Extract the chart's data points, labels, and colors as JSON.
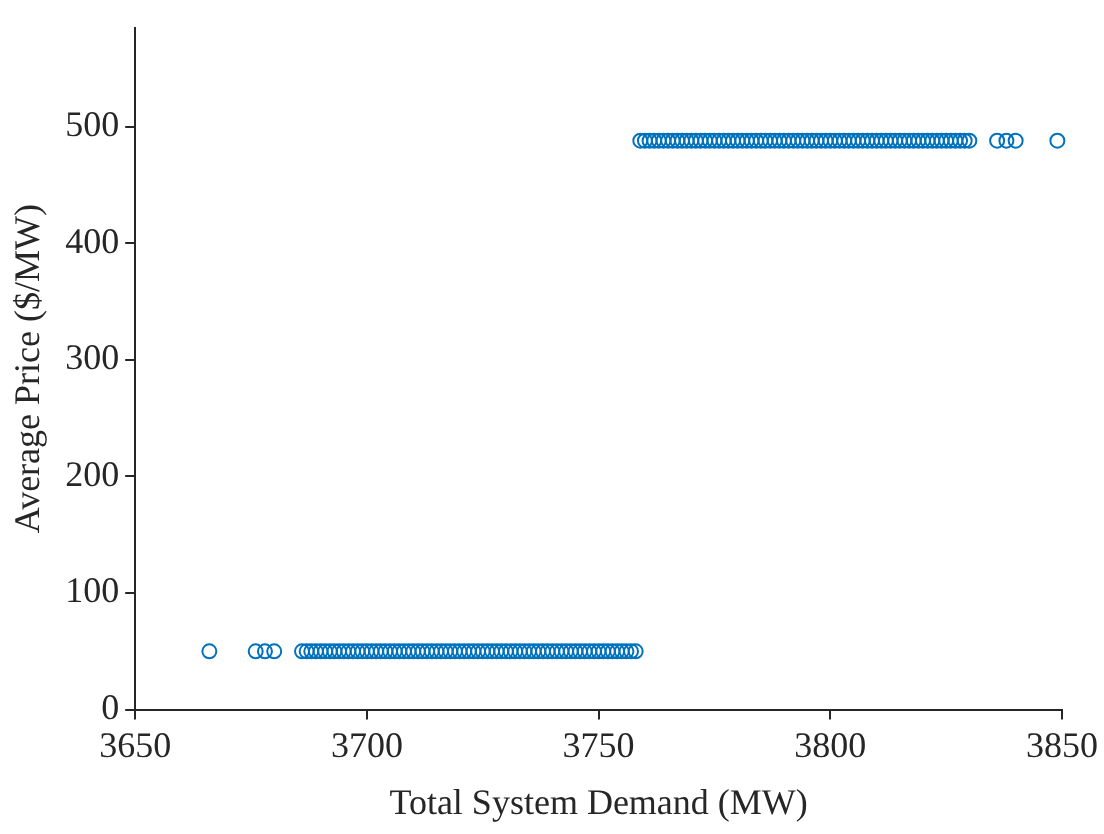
{
  "chart_data": {
    "type": "scatter",
    "xlabel": "Total System Demand (MW)",
    "ylabel": "Average Price ($/MW)",
    "xlim": [
      3650,
      3850
    ],
    "ylim": [
      0,
      585
    ],
    "xticks": [
      3650,
      3700,
      3750,
      3800,
      3850
    ],
    "yticks": [
      0,
      100,
      200,
      300,
      400,
      500
    ],
    "grid": false,
    "legend": false,
    "marker": "circle",
    "series": [
      {
        "color": "#0072bd",
        "x": [
          3666,
          3676,
          3678,
          3680,
          3686,
          3687,
          3688,
          3689,
          3690,
          3691,
          3692,
          3693,
          3694,
          3695,
          3696,
          3697,
          3698,
          3699,
          3700,
          3701,
          3702,
          3703,
          3704,
          3705,
          3706,
          3707,
          3708,
          3709,
          3710,
          3711,
          3712,
          3713,
          3714,
          3715,
          3716,
          3717,
          3718,
          3719,
          3720,
          3721,
          3722,
          3723,
          3724,
          3725,
          3726,
          3727,
          3728,
          3729,
          3730,
          3731,
          3732,
          3733,
          3734,
          3735,
          3736,
          3737,
          3738,
          3739,
          3740,
          3741,
          3742,
          3743,
          3744,
          3745,
          3746,
          3747,
          3748,
          3749,
          3750,
          3751,
          3752,
          3753,
          3754,
          3755,
          3756,
          3757,
          3758
        ],
        "values": [
          50,
          50,
          50,
          50,
          50,
          50,
          50,
          50,
          50,
          50,
          50,
          50,
          50,
          50,
          50,
          50,
          50,
          50,
          50,
          50,
          50,
          50,
          50,
          50,
          50,
          50,
          50,
          50,
          50,
          50,
          50,
          50,
          50,
          50,
          50,
          50,
          50,
          50,
          50,
          50,
          50,
          50,
          50,
          50,
          50,
          50,
          50,
          50,
          50,
          50,
          50,
          50,
          50,
          50,
          50,
          50,
          50,
          50,
          50,
          50,
          50,
          50,
          50,
          50,
          50,
          50,
          50,
          50,
          50,
          50,
          50,
          50,
          50,
          50,
          50,
          50,
          50
        ]
      },
      {
        "color": "#0072bd",
        "x": [
          3759,
          3760,
          3761,
          3762,
          3763,
          3764,
          3765,
          3766,
          3767,
          3768,
          3769,
          3770,
          3771,
          3772,
          3773,
          3774,
          3775,
          3776,
          3777,
          3778,
          3779,
          3780,
          3781,
          3782,
          3783,
          3784,
          3785,
          3786,
          3787,
          3788,
          3789,
          3790,
          3791,
          3792,
          3793,
          3794,
          3795,
          3796,
          3797,
          3798,
          3799,
          3800,
          3801,
          3802,
          3803,
          3804,
          3805,
          3806,
          3807,
          3808,
          3809,
          3810,
          3811,
          3812,
          3813,
          3814,
          3815,
          3816,
          3817,
          3818,
          3819,
          3820,
          3821,
          3822,
          3823,
          3824,
          3825,
          3826,
          3827,
          3828,
          3829,
          3830,
          3836,
          3838,
          3840,
          3849
        ],
        "values": [
          488,
          488,
          488,
          488,
          488,
          488,
          488,
          488,
          488,
          488,
          488,
          488,
          488,
          488,
          488,
          488,
          488,
          488,
          488,
          488,
          488,
          488,
          488,
          488,
          488,
          488,
          488,
          488,
          488,
          488,
          488,
          488,
          488,
          488,
          488,
          488,
          488,
          488,
          488,
          488,
          488,
          488,
          488,
          488,
          488,
          488,
          488,
          488,
          488,
          488,
          488,
          488,
          488,
          488,
          488,
          488,
          488,
          488,
          488,
          488,
          488,
          488,
          488,
          488,
          488,
          488,
          488,
          488,
          488,
          488,
          488,
          488,
          488,
          488,
          488,
          488
        ]
      }
    ]
  }
}
